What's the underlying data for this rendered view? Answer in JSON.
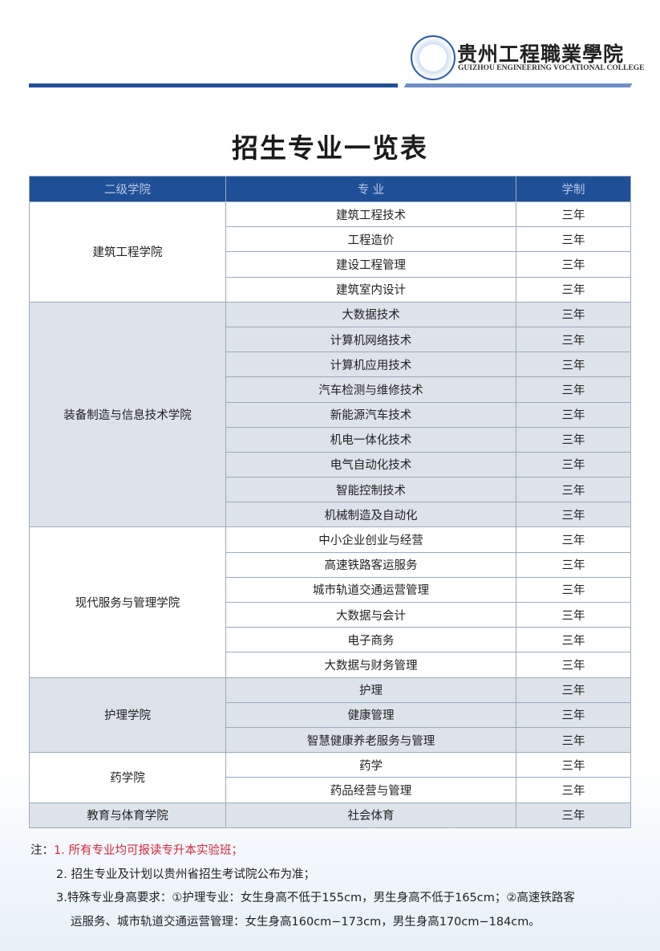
{
  "header": {
    "logo_icon": "school-emblem",
    "name_cn": "贵州工程職業學院",
    "name_en": "GUIZHOU ENGINEERING VOCATIONAL COLLEGE"
  },
  "title": "招生专业一览表",
  "table": {
    "columns": [
      "二级学院",
      "专  业",
      "学制"
    ],
    "groups": [
      {
        "college": "建筑工程学院",
        "majors": [
          [
            "建筑工程技术",
            "三年"
          ],
          [
            "工程造价",
            "三年"
          ],
          [
            "建设工程管理",
            "三年"
          ],
          [
            "建筑室内设计",
            "三年"
          ]
        ]
      },
      {
        "college": "装备制造与信息技术学院",
        "majors": [
          [
            "大数据技术",
            "三年"
          ],
          [
            "计算机网络技术",
            "三年"
          ],
          [
            "计算机应用技术",
            "三年"
          ],
          [
            "汽车检测与维修技术",
            "三年"
          ],
          [
            "新能源汽车技术",
            "三年"
          ],
          [
            "机电一体化技术",
            "三年"
          ],
          [
            "电气自动化技术",
            "三年"
          ],
          [
            "智能控制技术",
            "三年"
          ],
          [
            "机械制造及自动化",
            "三年"
          ]
        ]
      },
      {
        "college": "现代服务与管理学院",
        "majors": [
          [
            "中小企业创业与经营",
            "三年"
          ],
          [
            "高速铁路客运服务",
            "三年"
          ],
          [
            "城市轨道交通运营管理",
            "三年"
          ],
          [
            "大数据与会计",
            "三年"
          ],
          [
            "电子商务",
            "三年"
          ],
          [
            "大数据与财务管理",
            "三年"
          ]
        ]
      },
      {
        "college": "护理学院",
        "majors": [
          [
            "护理",
            "三年"
          ],
          [
            "健康管理",
            "三年"
          ],
          [
            "智慧健康养老服务与管理",
            "三年"
          ]
        ]
      },
      {
        "college": "药学院",
        "majors": [
          [
            "药学",
            "三年"
          ],
          [
            "药品经营与管理",
            "三年"
          ]
        ]
      },
      {
        "college": "教育与体育学院",
        "majors": [
          [
            "社会体育",
            "三年"
          ]
        ]
      }
    ]
  },
  "notes": {
    "prefix": "注：",
    "items": [
      "1. 所有专业均可报读专升本实验班；",
      "2. 招生专业及计划以贵州省招生考试院公布为准；",
      "3.特殊专业身高要求：①护理专业：女生身高不低于155cm，男生身高不低于165cm；②高速铁路客",
      "运服务、城市轨道交通运营管理：女生身高160cm−173cm，男生身高170cm−184cm。"
    ]
  },
  "colors": {
    "header_blue": "#1f4f96",
    "alt_row": "#dde3ea",
    "note_red": "#d4283c"
  }
}
